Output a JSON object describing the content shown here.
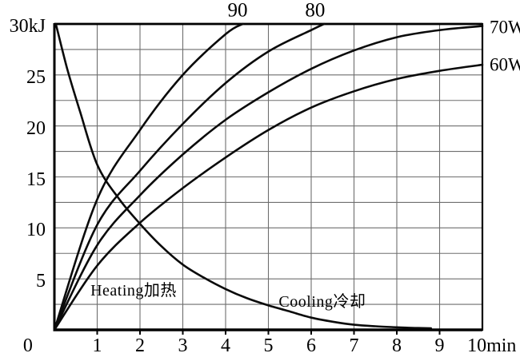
{
  "chart_data": {
    "type": "line",
    "title": "",
    "xlabel": "min",
    "ylabel": "kJ",
    "x_axis": {
      "min": 0,
      "max": 10,
      "grid_step": 1,
      "labels": [
        {
          "text": "0",
          "t": -0.62
        },
        {
          "text": "1",
          "t": 1
        },
        {
          "text": "2",
          "t": 2
        },
        {
          "text": "3",
          "t": 3
        },
        {
          "text": "4",
          "t": 4
        },
        {
          "text": "5",
          "t": 5
        },
        {
          "text": "6",
          "t": 6
        },
        {
          "text": "7",
          "t": 7
        },
        {
          "text": "8",
          "t": 8
        },
        {
          "text": "9",
          "t": 9
        },
        {
          "text": "10min",
          "t": 10.22
        }
      ]
    },
    "y_axis": {
      "min": 0,
      "max": 30,
      "grid_step": 2.5,
      "labels": [
        {
          "text": "30kJ",
          "value": 30
        },
        {
          "text": "25",
          "value": 25
        },
        {
          "text": "20",
          "value": 20
        },
        {
          "text": "15",
          "value": 15
        },
        {
          "text": "10",
          "value": 10
        },
        {
          "text": "5",
          "value": 5
        }
      ]
    },
    "series": [
      {
        "name": "heating-90",
        "label": "90",
        "points": [
          [
            0,
            0
          ],
          [
            1,
            12.8
          ],
          [
            2,
            19.6
          ],
          [
            3,
            25.0
          ],
          [
            4,
            29.0
          ],
          [
            4.4,
            30
          ]
        ]
      },
      {
        "name": "heating-80",
        "label": "80",
        "points": [
          [
            0,
            0
          ],
          [
            1,
            10.3
          ],
          [
            2,
            15.6
          ],
          [
            3,
            20.2
          ],
          [
            4,
            24.2
          ],
          [
            5,
            27.3
          ],
          [
            6,
            29.4
          ],
          [
            6.3,
            30
          ]
        ]
      },
      {
        "name": "heating-70W",
        "label": "70W",
        "points": [
          [
            0,
            0
          ],
          [
            1,
            8.3
          ],
          [
            2,
            13.2
          ],
          [
            3,
            17.2
          ],
          [
            4,
            20.6
          ],
          [
            5,
            23.3
          ],
          [
            6,
            25.6
          ],
          [
            7,
            27.4
          ],
          [
            8,
            28.7
          ],
          [
            9,
            29.4
          ],
          [
            10,
            29.8
          ]
        ]
      },
      {
        "name": "heating-60W",
        "label": "60W",
        "points": [
          [
            0,
            0
          ],
          [
            1,
            6.3
          ],
          [
            2,
            10.5
          ],
          [
            3,
            13.9
          ],
          [
            4,
            16.9
          ],
          [
            5,
            19.6
          ],
          [
            6,
            21.8
          ],
          [
            7,
            23.4
          ],
          [
            8,
            24.6
          ],
          [
            9,
            25.4
          ],
          [
            10,
            26.0
          ]
        ]
      },
      {
        "name": "cooling",
        "label": "Cooling冷却",
        "points": [
          [
            0.04,
            29.9
          ],
          [
            0.3,
            25.6
          ],
          [
            0.6,
            21.4
          ],
          [
            1,
            16.2
          ],
          [
            1.5,
            12.9
          ],
          [
            2,
            10.4
          ],
          [
            2.5,
            8.2
          ],
          [
            3,
            6.4
          ],
          [
            3.5,
            5.1
          ],
          [
            4,
            4.0
          ],
          [
            4.5,
            3.1
          ],
          [
            5,
            2.4
          ],
          [
            5.5,
            1.8
          ],
          [
            6,
            1.2
          ],
          [
            6.5,
            0.8
          ],
          [
            7,
            0.5
          ],
          [
            7.5,
            0.35
          ],
          [
            8,
            0.25
          ],
          [
            8.5,
            0.18
          ],
          [
            8.8,
            0.15
          ]
        ]
      }
    ],
    "annotations": [
      {
        "id": "series-label-90",
        "text": "90",
        "t": 4.28,
        "kj": 31.3,
        "group": "top"
      },
      {
        "id": "series-label-80",
        "text": "80",
        "t": 6.09,
        "kj": 31.3,
        "group": "top"
      },
      {
        "id": "series-label-70w",
        "text": "70W",
        "t": 10.17,
        "kj": 29.7,
        "group": "right"
      },
      {
        "id": "series-label-60w",
        "text": "60W",
        "t": 10.17,
        "kj": 26.0,
        "group": "right"
      },
      {
        "id": "heating-annotation",
        "text": "Heating加热",
        "t": 1.85,
        "kj": 3.85,
        "group": "anno"
      },
      {
        "id": "cooling-annotation",
        "text": "Cooling冷却",
        "t": 6.26,
        "kj": 2.75,
        "group": "anno"
      }
    ],
    "legend": "none",
    "grid": "on"
  },
  "colors": {
    "background": "#ffffff",
    "grid": "#6e6e6e",
    "axis": "#000000",
    "curve": "#0a0a0a",
    "text": "#000000"
  }
}
